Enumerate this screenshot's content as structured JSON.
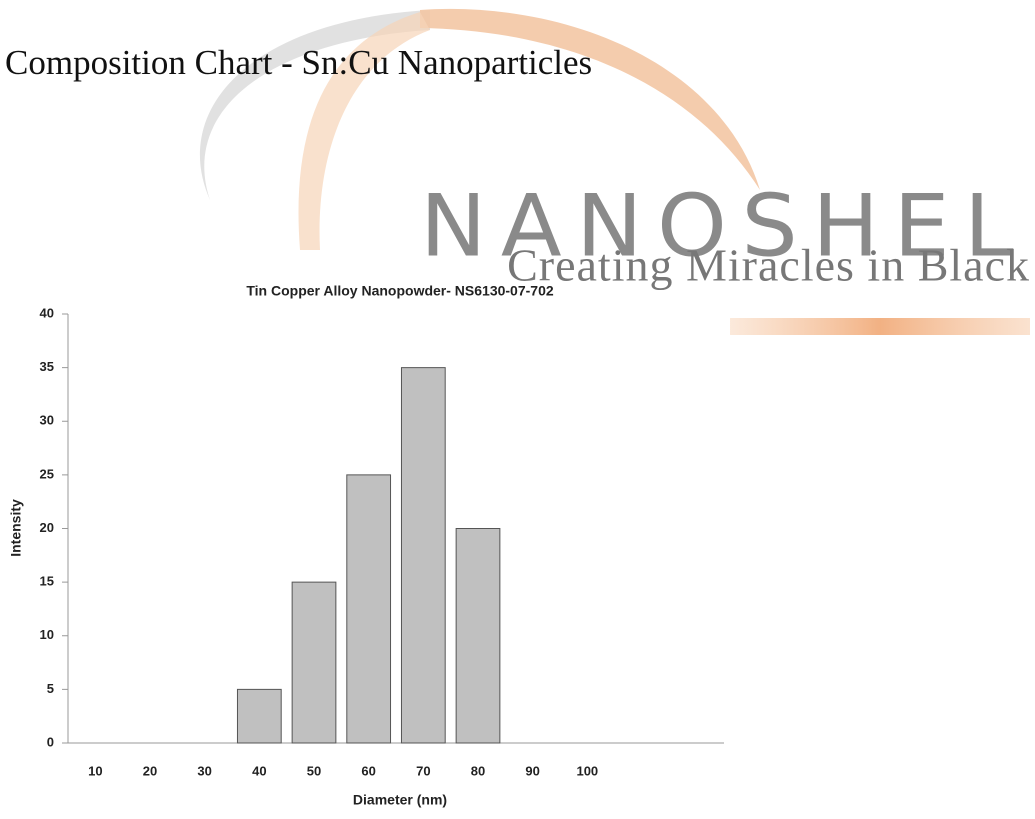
{
  "heading": "Composition Chart - Sn:Cu Nanoparticles",
  "logo": {
    "name": "NANOSHEL",
    "tagline": "Creating Miracles in Black"
  },
  "chart_data": {
    "type": "bar",
    "title": "Tin Copper Alloy Nanopowder- NS6130-07-702",
    "x_label": "Diameter (nm)",
    "y_label": "Intensity",
    "categories": [
      "10",
      "20",
      "30",
      "40",
      "50",
      "60",
      "70",
      "80",
      "90",
      "100",
      null,
      null
    ],
    "values": [
      0,
      0,
      0,
      5,
      15,
      25,
      35,
      20,
      0,
      0,
      null,
      null
    ],
    "color": "#c0c0c0",
    "ylim": [
      0,
      40
    ],
    "yticks": [
      0,
      5,
      10,
      15,
      20,
      25,
      30,
      35,
      40
    ],
    "grid": false
  }
}
